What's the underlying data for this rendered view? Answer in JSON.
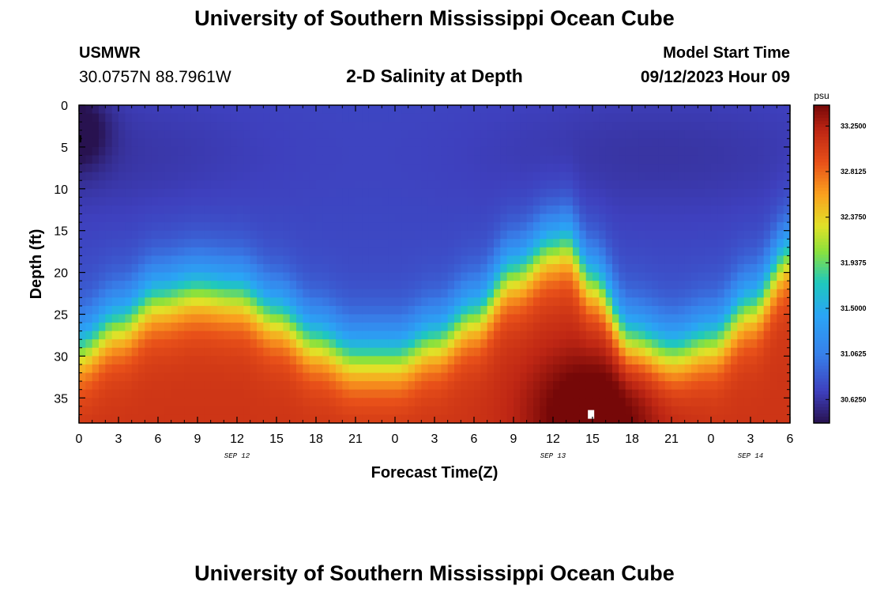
{
  "header": {
    "title": "University of Southern Mississippi Ocean Cube",
    "station": "USMWR",
    "coords": "30.0757N  88.7961W",
    "chart_title": "2-D Salinity at Depth",
    "model_label": "Model Start Time",
    "model_time": "09/12/2023 Hour 09"
  },
  "footer": {
    "title": "University of Southern Mississippi Ocean Cube"
  },
  "chart_data": {
    "type": "heatmap",
    "title": "2-D Salinity at Depth",
    "xlabel": "Forecast Time(Z)",
    "ylabel": "Depth (ft)",
    "x_range_hours": [
      0,
      54
    ],
    "x_tick_labels": [
      "0",
      "3",
      "6",
      "9",
      "12",
      "15",
      "18",
      "21",
      "0",
      "3",
      "6",
      "9",
      "12",
      "15",
      "18",
      "21",
      "0",
      "3",
      "6"
    ],
    "date_labels": [
      {
        "label": "SEP 12",
        "hour": 12
      },
      {
        "label": "SEP 13",
        "hour": 36
      },
      {
        "label": "SEP 14",
        "hour": 51
      }
    ],
    "y_ticks": [
      0,
      5,
      10,
      15,
      20,
      25,
      30,
      35
    ],
    "y_range_ft": [
      0,
      38
    ],
    "colorbar": {
      "units": "psu",
      "min": 30.4,
      "max": 33.45,
      "tick_labels": [
        "33.2500",
        "32.8125",
        "32.3750",
        "31.9375",
        "31.5000",
        "31.0625",
        "30.6250"
      ],
      "tick_values": [
        33.25,
        32.8125,
        32.375,
        31.9375,
        31.5,
        31.0625,
        30.625
      ]
    },
    "halocline_depth_ft": {
      "hours": [
        0,
        3,
        6,
        9,
        12,
        15,
        18,
        21,
        24,
        27,
        30,
        33,
        36,
        37,
        39,
        42,
        45,
        48,
        51,
        54
      ],
      "values": [
        29,
        26,
        23,
        22,
        22.5,
        25,
        28,
        30,
        30,
        28,
        25,
        20,
        17,
        16.5,
        21,
        28,
        29.5,
        28,
        24,
        18
      ]
    },
    "surface_salinity_psu": 30.75,
    "bottom_salinity_psu": 33.1,
    "max_salinity_location": {
      "hour": 39,
      "depth_ft": 37,
      "value_psu": 33.4
    },
    "min_salinity_location": {
      "hour": 0,
      "depth_ft": 3,
      "value_psu": 30.45
    }
  }
}
